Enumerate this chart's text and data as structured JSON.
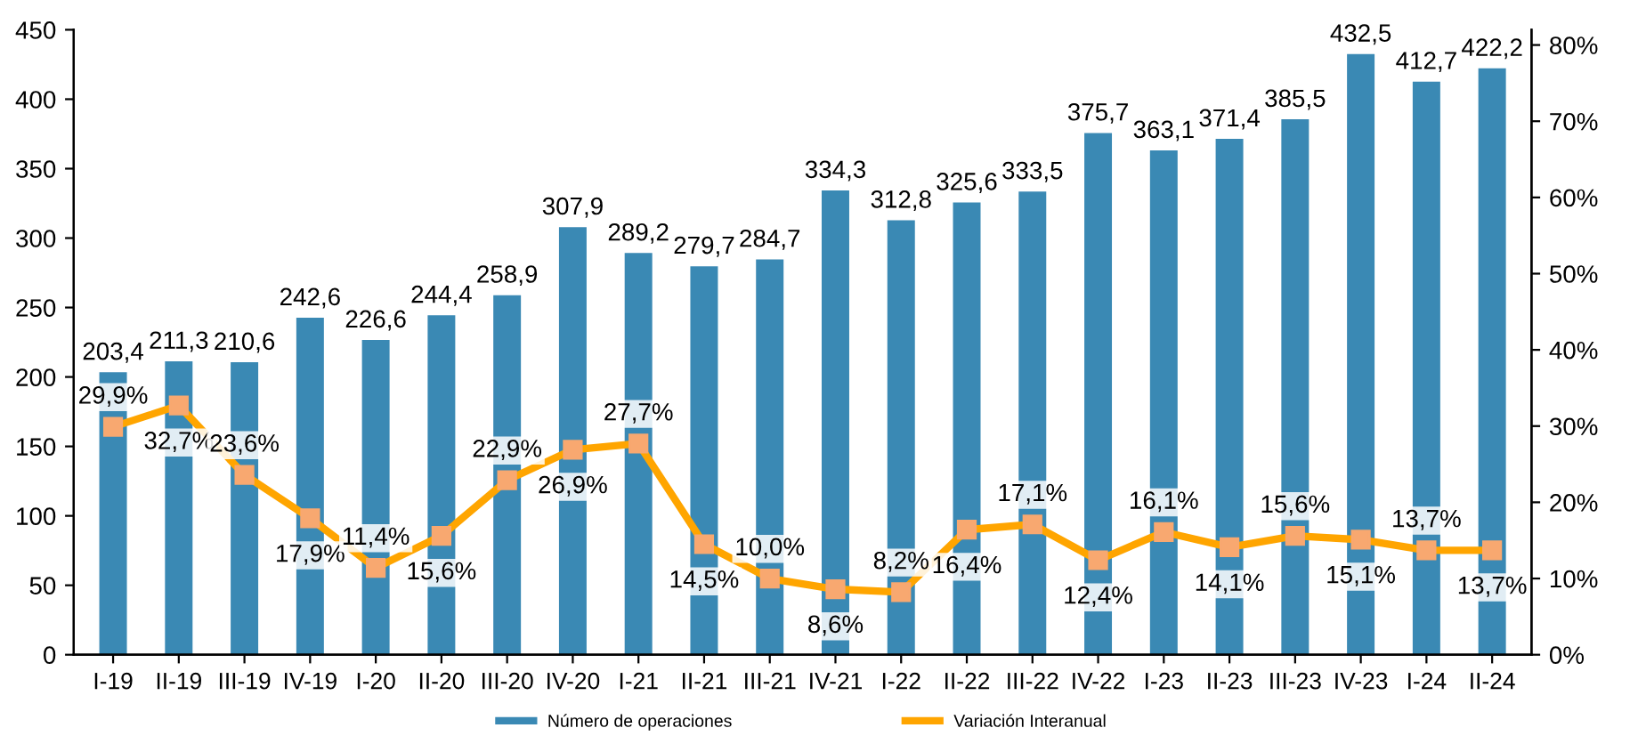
{
  "chart_data": {
    "type": "bar",
    "categories": [
      "I-19",
      "II-19",
      "III-19",
      "IV-19",
      "I-20",
      "II-20",
      "III-20",
      "IV-20",
      "I-21",
      "II-21",
      "III-21",
      "IV-21",
      "I-22",
      "II-22",
      "III-22",
      "IV-22",
      "I-23",
      "II-23",
      "III-23",
      "IV-23",
      "I-24",
      "II-24"
    ],
    "series": [
      {
        "name": "Número de operaciones",
        "color": "#3a89b4",
        "values": [
          203.4,
          211.3,
          210.6,
          242.6,
          226.6,
          244.4,
          258.9,
          307.9,
          289.2,
          279.7,
          284.7,
          334.3,
          312.8,
          325.6,
          333.5,
          375.7,
          363.1,
          371.4,
          385.5,
          432.5,
          412.7,
          422.2
        ],
        "value_labels": [
          "203,4",
          "211,3",
          "210,6",
          "242,6",
          "226,6",
          "244,4",
          "258,9",
          "307,9",
          "289,2",
          "279,7",
          "284,7",
          "334,3",
          "312,8",
          "325,6",
          "333,5",
          "375,7",
          "363,1",
          "371,4",
          "385,5",
          "432,5",
          "412,7",
          "422,2"
        ]
      },
      {
        "name": "Variación Interanual",
        "type": "line",
        "axis": "y2",
        "color": "#ffa500",
        "marker": "square",
        "values": [
          29.9,
          32.7,
          23.6,
          17.9,
          11.4,
          15.6,
          22.9,
          26.9,
          27.7,
          14.5,
          10.0,
          8.6,
          8.2,
          16.4,
          17.1,
          12.4,
          16.1,
          14.1,
          15.6,
          15.1,
          13.7,
          13.7
        ],
        "value_labels": [
          "29,9%",
          "32,7%",
          "23,6%",
          "17,9%",
          "11,4%",
          "15,6%",
          "22,9%",
          "26,9%",
          "27,7%",
          "14,5%",
          "10,0%",
          "8,6%",
          "8,2%",
          "16,4%",
          "17,1%",
          "12,4%",
          "16,1%",
          "14,1%",
          "15,6%",
          "15,1%",
          "13,7%",
          "13,7%"
        ]
      }
    ],
    "ylim": [
      0,
      450
    ],
    "yticks": [
      0,
      50,
      100,
      150,
      200,
      250,
      300,
      350,
      400,
      450
    ],
    "y2lim": [
      0,
      82
    ],
    "y2ticks": [
      {
        "value": 0,
        "label": "0%"
      },
      {
        "value": 10,
        "label": "10%"
      },
      {
        "value": 20,
        "label": "20%"
      },
      {
        "value": 30,
        "label": "30%"
      },
      {
        "value": 40,
        "label": "40%"
      },
      {
        "value": 50,
        "label": "50%"
      },
      {
        "value": 60,
        "label": "60%"
      },
      {
        "value": 70,
        "label": "70%"
      },
      {
        "value": 80,
        "label": "80%"
      }
    ],
    "grid": false,
    "legend": "bottom"
  }
}
